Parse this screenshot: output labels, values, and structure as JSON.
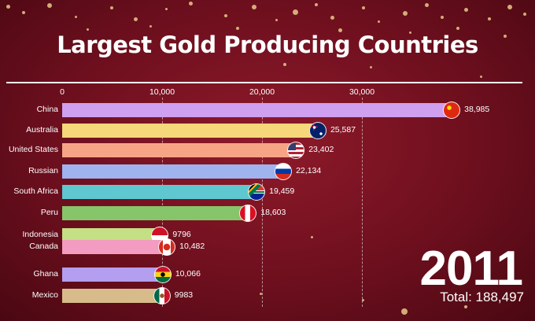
{
  "chart_data": {
    "type": "bar",
    "title": "Largest Gold Producing Countries",
    "xlim": [
      0,
      40000
    ],
    "xticks": [
      "0",
      "10,000",
      "20,000",
      "30,000"
    ],
    "grid": true,
    "categories": [
      "China",
      "Australia",
      "United States",
      "Russian",
      "South Africa",
      "Peru",
      "Indonesia",
      "Canada",
      "Ghana",
      "Mexico"
    ],
    "values": [
      38985,
      25587,
      23402,
      22134,
      19459,
      18603,
      9796,
      10482,
      10066,
      9983
    ],
    "value_labels": [
      "38,985",
      "25,587",
      "23,402",
      "22,134",
      "19,459",
      "18,603",
      "9796",
      "10,482",
      "10,066",
      "9983"
    ],
    "colors": [
      "#cf9ff0",
      "#f6d77a",
      "#f7a486",
      "#9fb3ef",
      "#5ec7cf",
      "#86c56a",
      "#c4df84",
      "#f39bc1",
      "#b39ef0",
      "#d8bb8a"
    ],
    "flag_icons": [
      "china-flag-icon",
      "australia-flag-icon",
      "united-states-flag-icon",
      "russia-flag-icon",
      "south-africa-flag-icon",
      "peru-flag-icon",
      "indonesia-flag-icon",
      "canada-flag-icon",
      "ghana-flag-icon",
      "mexico-flag-icon"
    ],
    "year": "2011",
    "total": "Total: 188,497"
  }
}
